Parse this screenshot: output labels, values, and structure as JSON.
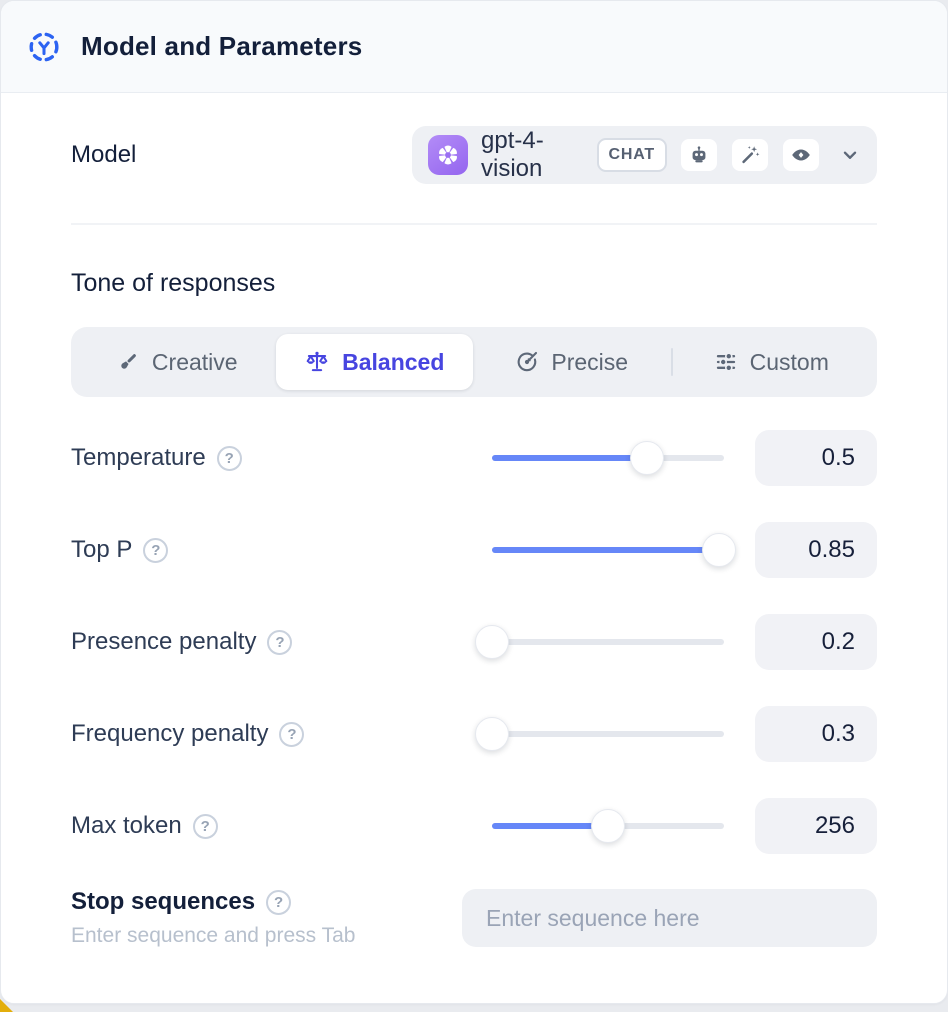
{
  "header": {
    "title": "Model and Parameters"
  },
  "model": {
    "label": "Model",
    "selected": "gpt-4-vision",
    "type_badge": "CHAT",
    "capabilities": [
      "assistant",
      "magic",
      "vision"
    ]
  },
  "tone": {
    "heading": "Tone of responses",
    "options": [
      {
        "label": "Creative",
        "icon": "paintbrush-icon",
        "selected": false
      },
      {
        "label": "Balanced",
        "icon": "scale-icon",
        "selected": true
      },
      {
        "label": "Precise",
        "icon": "target-icon",
        "selected": false
      },
      {
        "label": "Custom",
        "icon": "sliders-icon",
        "selected": false
      }
    ]
  },
  "parameters": [
    {
      "label": "Temperature",
      "value": "0.5",
      "fill_pct": 67
    },
    {
      "label": "Top P",
      "value": "0.85",
      "fill_pct": 98
    },
    {
      "label": "Presence penalty",
      "value": "0.2",
      "fill_pct": 0
    },
    {
      "label": "Frequency penalty",
      "value": "0.3",
      "fill_pct": 0
    },
    {
      "label": "Max token",
      "value": "256",
      "fill_pct": 50
    }
  ],
  "stop_sequences": {
    "label": "Stop sequences",
    "hint": "Enter sequence and press Tab",
    "placeholder": "Enter sequence here"
  },
  "icons": {
    "help_glyph": "?"
  },
  "colors": {
    "accent": "#4745e0",
    "slider-blue": "#6687f8",
    "brand-purple": "#a47bf5",
    "header-icon-blue": "#2c63f2",
    "badge-yellow": "#e3ae0c"
  }
}
